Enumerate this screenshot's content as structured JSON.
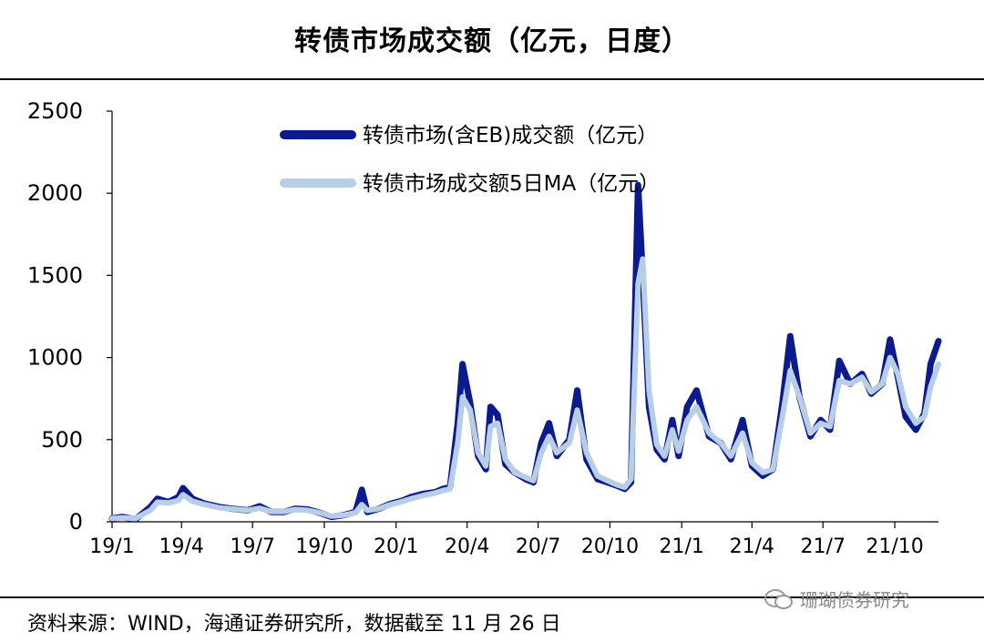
{
  "header": {
    "title": "转债市场成交额（亿元，日度）"
  },
  "footer": {
    "source": "资料来源：WIND，海通证券研究所，数据截至 11 月 26 日"
  },
  "watermark": {
    "text": "珊瑚债券研究",
    "icon": "wechat-icon"
  },
  "chart_data": {
    "type": "line",
    "ylim": [
      0,
      2500
    ],
    "yticks": [
      0,
      500,
      1000,
      1500,
      2000,
      2500
    ],
    "x_ticks": [
      "19/1",
      "19/4",
      "19/7",
      "19/10",
      "20/1",
      "20/4",
      "20/7",
      "20/10",
      "21/1",
      "21/4",
      "21/7",
      "21/10"
    ],
    "x_range": [
      "2019-01-02",
      "2021-11-26"
    ],
    "legend_position": "top-center",
    "series": [
      {
        "name": "转债市场(含EB)成交额（亿元）",
        "color": "#0b1a8c",
        "points": [
          [
            "2019-01-02",
            20
          ],
          [
            "2019-01-15",
            30
          ],
          [
            "2019-02-01",
            15
          ],
          [
            "2019-02-20",
            90
          ],
          [
            "2019-03-01",
            140
          ],
          [
            "2019-03-15",
            120
          ],
          [
            "2019-03-28",
            150
          ],
          [
            "2019-04-03",
            205
          ],
          [
            "2019-04-15",
            140
          ],
          [
            "2019-05-01",
            110
          ],
          [
            "2019-05-20",
            90
          ],
          [
            "2019-06-05",
            80
          ],
          [
            "2019-06-25",
            70
          ],
          [
            "2019-07-10",
            95
          ],
          [
            "2019-07-25",
            60
          ],
          [
            "2019-08-10",
            60
          ],
          [
            "2019-08-25",
            80
          ],
          [
            "2019-09-10",
            75
          ],
          [
            "2019-09-25",
            55
          ],
          [
            "2019-10-10",
            30
          ],
          [
            "2019-10-25",
            40
          ],
          [
            "2019-11-10",
            60
          ],
          [
            "2019-11-18",
            195
          ],
          [
            "2019-11-25",
            60
          ],
          [
            "2019-12-10",
            80
          ],
          [
            "2019-12-25",
            110
          ],
          [
            "2020-01-10",
            130
          ],
          [
            "2020-01-20",
            150
          ],
          [
            "2020-02-05",
            170
          ],
          [
            "2020-02-20",
            180
          ],
          [
            "2020-03-01",
            200
          ],
          [
            "2020-03-10",
            210
          ],
          [
            "2020-03-20",
            600
          ],
          [
            "2020-03-26",
            960
          ],
          [
            "2020-04-05",
            720
          ],
          [
            "2020-04-15",
            400
          ],
          [
            "2020-04-25",
            320
          ],
          [
            "2020-05-01",
            700
          ],
          [
            "2020-05-10",
            650
          ],
          [
            "2020-05-20",
            350
          ],
          [
            "2020-06-01",
            300
          ],
          [
            "2020-06-15",
            260
          ],
          [
            "2020-06-25",
            240
          ],
          [
            "2020-07-05",
            480
          ],
          [
            "2020-07-15",
            600
          ],
          [
            "2020-07-25",
            400
          ],
          [
            "2020-08-10",
            500
          ],
          [
            "2020-08-20",
            800
          ],
          [
            "2020-09-01",
            380
          ],
          [
            "2020-09-15",
            260
          ],
          [
            "2020-09-28",
            240
          ],
          [
            "2020-10-10",
            220
          ],
          [
            "2020-10-20",
            200
          ],
          [
            "2020-10-28",
            240
          ],
          [
            "2020-11-06",
            2050
          ],
          [
            "2020-11-12",
            1500
          ],
          [
            "2020-11-20",
            700
          ],
          [
            "2020-11-30",
            440
          ],
          [
            "2020-12-10",
            380
          ],
          [
            "2020-12-20",
            620
          ],
          [
            "2020-12-28",
            400
          ],
          [
            "2021-01-08",
            700
          ],
          [
            "2021-01-20",
            800
          ],
          [
            "2021-02-05",
            520
          ],
          [
            "2021-02-20",
            480
          ],
          [
            "2021-03-05",
            380
          ],
          [
            "2021-03-20",
            620
          ],
          [
            "2021-04-01",
            340
          ],
          [
            "2021-04-15",
            280
          ],
          [
            "2021-04-28",
            320
          ],
          [
            "2021-05-10",
            720
          ],
          [
            "2021-05-20",
            1130
          ],
          [
            "2021-06-01",
            760
          ],
          [
            "2021-06-15",
            520
          ],
          [
            "2021-06-28",
            620
          ],
          [
            "2021-07-10",
            560
          ],
          [
            "2021-07-22",
            980
          ],
          [
            "2021-08-05",
            840
          ],
          [
            "2021-08-20",
            900
          ],
          [
            "2021-09-01",
            780
          ],
          [
            "2021-09-15",
            840
          ],
          [
            "2021-09-25",
            1110
          ],
          [
            "2021-10-05",
            880
          ],
          [
            "2021-10-15",
            640
          ],
          [
            "2021-10-28",
            560
          ],
          [
            "2021-11-08",
            660
          ],
          [
            "2021-11-16",
            960
          ],
          [
            "2021-11-26",
            1100
          ]
        ]
      },
      {
        "name": "转债市场成交额5日MA（亿元）",
        "color": "#b8cde6",
        "points": [
          [
            "2019-01-02",
            20
          ],
          [
            "2019-01-15",
            25
          ],
          [
            "2019-02-01",
            20
          ],
          [
            "2019-02-20",
            70
          ],
          [
            "2019-03-01",
            120
          ],
          [
            "2019-03-15",
            115
          ],
          [
            "2019-03-28",
            130
          ],
          [
            "2019-04-03",
            165
          ],
          [
            "2019-04-15",
            125
          ],
          [
            "2019-05-01",
            105
          ],
          [
            "2019-05-20",
            85
          ],
          [
            "2019-06-05",
            78
          ],
          [
            "2019-06-25",
            70
          ],
          [
            "2019-07-10",
            82
          ],
          [
            "2019-07-25",
            62
          ],
          [
            "2019-08-10",
            62
          ],
          [
            "2019-08-25",
            75
          ],
          [
            "2019-09-10",
            70
          ],
          [
            "2019-09-25",
            55
          ],
          [
            "2019-10-10",
            35
          ],
          [
            "2019-10-25",
            40
          ],
          [
            "2019-11-10",
            55
          ],
          [
            "2019-11-18",
            105
          ],
          [
            "2019-11-25",
            70
          ],
          [
            "2019-12-10",
            80
          ],
          [
            "2019-12-25",
            105
          ],
          [
            "2020-01-10",
            125
          ],
          [
            "2020-01-20",
            140
          ],
          [
            "2020-02-05",
            160
          ],
          [
            "2020-02-20",
            175
          ],
          [
            "2020-03-01",
            190
          ],
          [
            "2020-03-10",
            200
          ],
          [
            "2020-03-20",
            480
          ],
          [
            "2020-03-26",
            760
          ],
          [
            "2020-04-05",
            680
          ],
          [
            "2020-04-15",
            420
          ],
          [
            "2020-04-25",
            340
          ],
          [
            "2020-05-01",
            580
          ],
          [
            "2020-05-10",
            600
          ],
          [
            "2020-05-20",
            380
          ],
          [
            "2020-06-01",
            300
          ],
          [
            "2020-06-15",
            270
          ],
          [
            "2020-06-25",
            250
          ],
          [
            "2020-07-05",
            420
          ],
          [
            "2020-07-15",
            520
          ],
          [
            "2020-07-25",
            420
          ],
          [
            "2020-08-10",
            480
          ],
          [
            "2020-08-20",
            680
          ],
          [
            "2020-09-01",
            420
          ],
          [
            "2020-09-15",
            280
          ],
          [
            "2020-09-28",
            250
          ],
          [
            "2020-10-10",
            225
          ],
          [
            "2020-10-20",
            210
          ],
          [
            "2020-10-28",
            260
          ],
          [
            "2020-11-06",
            1450
          ],
          [
            "2020-11-12",
            1600
          ],
          [
            "2020-11-20",
            800
          ],
          [
            "2020-11-30",
            470
          ],
          [
            "2020-12-10",
            400
          ],
          [
            "2020-12-20",
            560
          ],
          [
            "2020-12-28",
            430
          ],
          [
            "2021-01-08",
            620
          ],
          [
            "2021-01-20",
            700
          ],
          [
            "2021-02-05",
            540
          ],
          [
            "2021-02-20",
            480
          ],
          [
            "2021-03-05",
            400
          ],
          [
            "2021-03-20",
            540
          ],
          [
            "2021-04-01",
            360
          ],
          [
            "2021-04-15",
            300
          ],
          [
            "2021-04-28",
            320
          ],
          [
            "2021-05-10",
            640
          ],
          [
            "2021-05-20",
            920
          ],
          [
            "2021-06-01",
            760
          ],
          [
            "2021-06-15",
            540
          ],
          [
            "2021-06-28",
            600
          ],
          [
            "2021-07-10",
            580
          ],
          [
            "2021-07-22",
            860
          ],
          [
            "2021-08-05",
            840
          ],
          [
            "2021-08-20",
            880
          ],
          [
            "2021-09-01",
            790
          ],
          [
            "2021-09-15",
            840
          ],
          [
            "2021-09-25",
            1000
          ],
          [
            "2021-10-05",
            900
          ],
          [
            "2021-10-15",
            700
          ],
          [
            "2021-10-28",
            600
          ],
          [
            "2021-11-08",
            640
          ],
          [
            "2021-11-16",
            820
          ],
          [
            "2021-11-26",
            960
          ]
        ]
      }
    ]
  }
}
